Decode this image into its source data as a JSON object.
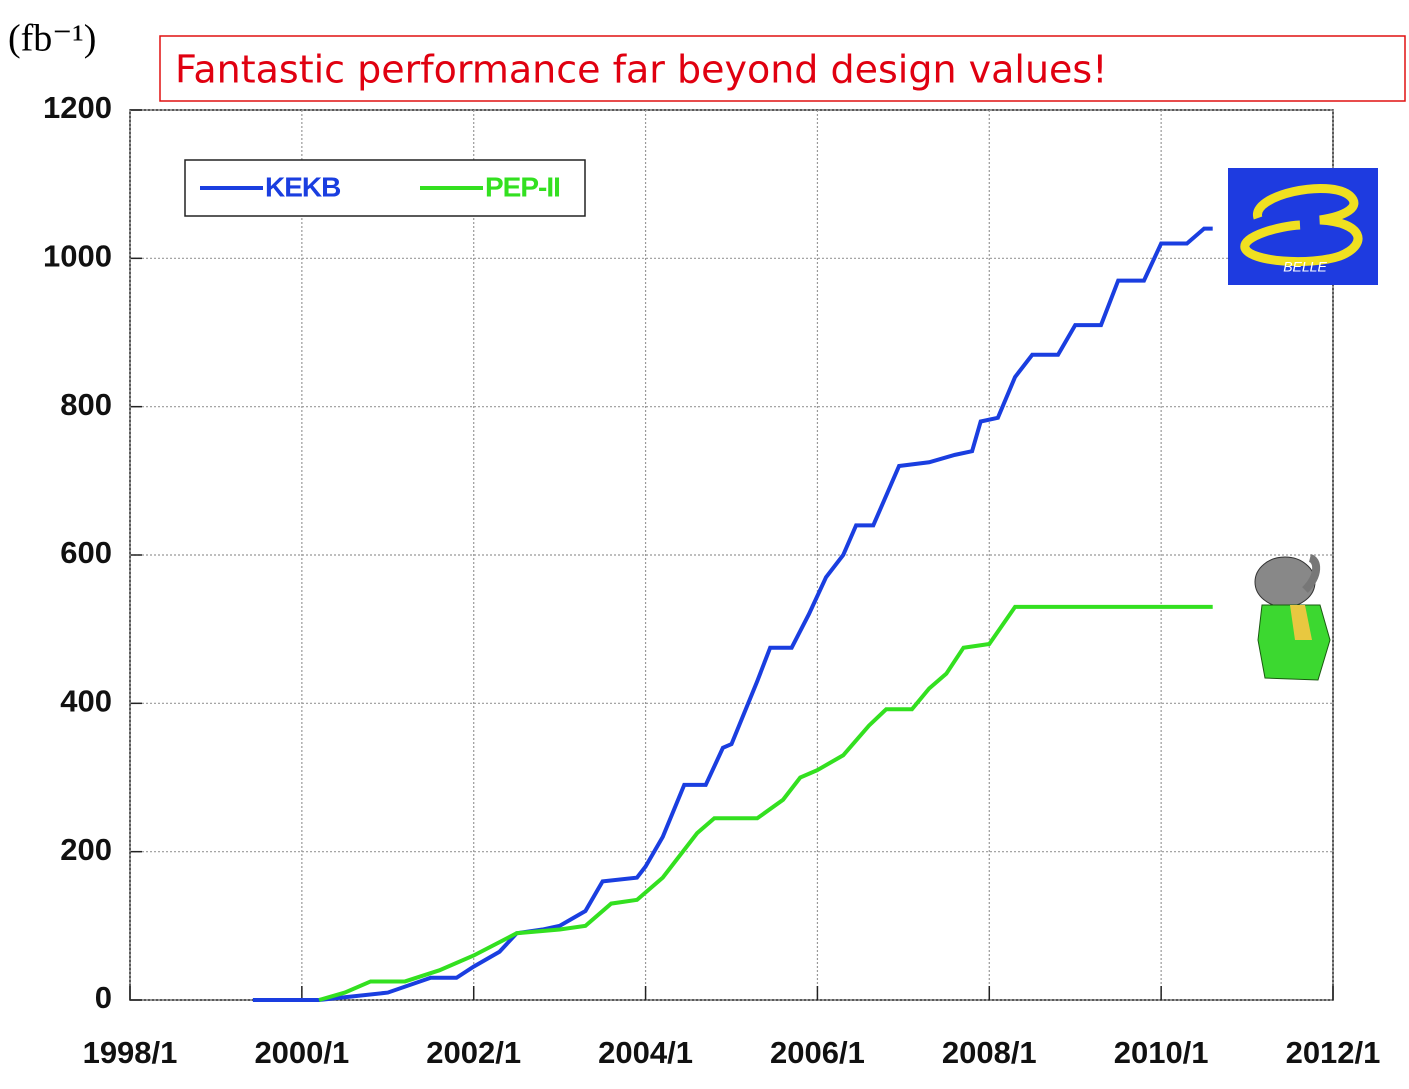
{
  "chart_data": {
    "type": "line",
    "annotation": "Fantastic performance far beyond design values!",
    "y_label": "(fb⁻¹)",
    "logo_text": "BELLE",
    "xlim": [
      1998,
      2012
    ],
    "xticks": [
      {
        "value": 1998,
        "label": "1998/1"
      },
      {
        "value": 2000,
        "label": "2000/1"
      },
      {
        "value": 2002,
        "label": "2002/1"
      },
      {
        "value": 2004,
        "label": "2004/1"
      },
      {
        "value": 2006,
        "label": "2006/1"
      },
      {
        "value": 2008,
        "label": "2008/1"
      },
      {
        "value": 2010,
        "label": "2010/1"
      },
      {
        "value": 2012,
        "label": "2012/1"
      }
    ],
    "ylim": [
      0,
      1200
    ],
    "yticks": [
      0,
      200,
      400,
      600,
      800,
      1000,
      1200
    ],
    "grid": true,
    "series": [
      {
        "name": "KEKB",
        "color": "#1a3ee0",
        "x": [
          1999.43,
          2000.2,
          2001.0,
          2001.5,
          2001.8,
          2002.0,
          2002.3,
          2002.5,
          2002.8,
          2003.0,
          2003.3,
          2003.5,
          2003.9,
          2004.0,
          2004.2,
          2004.45,
          2004.7,
          2004.9,
          2005.0,
          2005.3,
          2005.45,
          2005.7,
          2005.9,
          2006.1,
          2006.3,
          2006.45,
          2006.65,
          2006.95,
          2007.3,
          2007.6,
          2007.8,
          2007.9,
          2008.1,
          2008.3,
          2008.5,
          2008.8,
          2009.0,
          2009.3,
          2009.5,
          2009.8,
          2010.0,
          2010.3,
          2010.5,
          2010.6
        ],
        "values": [
          0,
          0,
          10,
          30,
          30,
          45,
          65,
          90,
          95,
          100,
          120,
          160,
          165,
          180,
          220,
          290,
          290,
          340,
          345,
          430,
          475,
          475,
          520,
          570,
          600,
          640,
          640,
          720,
          725,
          735,
          740,
          780,
          785,
          840,
          870,
          870,
          910,
          910,
          970,
          970,
          1020,
          1020,
          1040,
          1040
        ]
      },
      {
        "name": "PEP-II",
        "color": "#33e020",
        "x": [
          2000.2,
          2000.5,
          2000.8,
          2001.2,
          2001.6,
          2002.0,
          2002.5,
          2003.0,
          2003.3,
          2003.6,
          2003.9,
          2004.2,
          2004.6,
          2004.8,
          2005.3,
          2005.6,
          2005.8,
          2006.0,
          2006.3,
          2006.6,
          2006.8,
          2007.1,
          2007.3,
          2007.5,
          2007.7,
          2008.0,
          2008.3,
          2010.6
        ],
        "values": [
          0,
          10,
          25,
          25,
          40,
          60,
          90,
          95,
          100,
          130,
          135,
          165,
          225,
          245,
          245,
          270,
          300,
          310,
          330,
          370,
          392,
          392,
          420,
          440,
          475,
          480,
          530,
          530
        ]
      }
    ]
  }
}
